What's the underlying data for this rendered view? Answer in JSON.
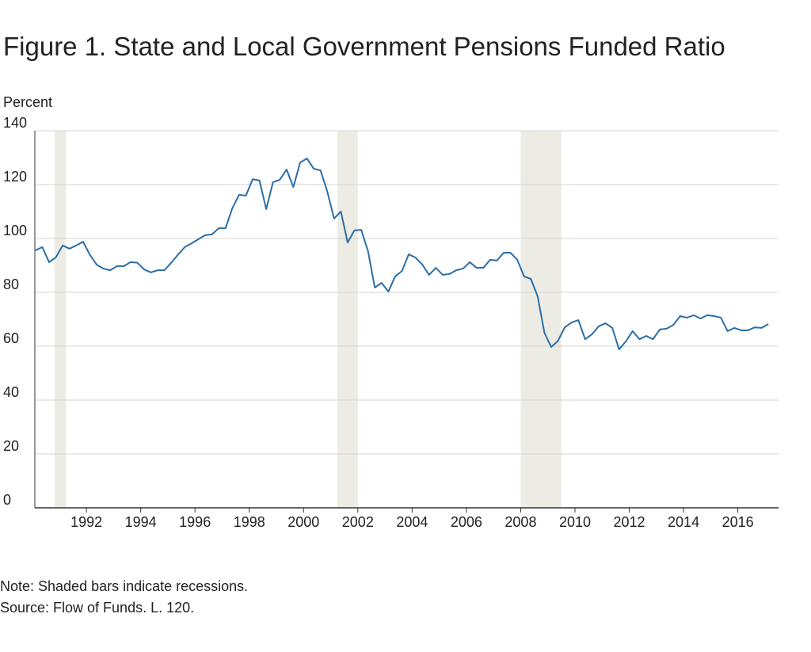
{
  "chart_data": {
    "type": "line",
    "title": "Figure 1. State and Local Government Pensions Funded Ratio",
    "y_label": "Percent",
    "notes": [
      "Note: Shaded bars indicate recessions.",
      "Source: Flow of Funds. L. 120."
    ],
    "xlim": [
      1990.1,
      2017.5
    ],
    "xticks": [
      1992,
      1994,
      1996,
      1998,
      2000,
      2002,
      2004,
      2006,
      2008,
      2010,
      2012,
      2014,
      2016
    ],
    "ylim": [
      0,
      140
    ],
    "yticks": [
      0,
      20,
      40,
      60,
      80,
      100,
      120,
      140
    ],
    "grid": true,
    "recession_color": "#ecebe4",
    "recessions": [
      [
        1990.83,
        1991.25
      ],
      [
        2001.25,
        2002.0
      ],
      [
        2008.0,
        2009.5
      ]
    ],
    "x": [
      1990.125,
      1990.375,
      1990.625,
      1990.875,
      1991.125,
      1991.375,
      1991.625,
      1991.875,
      1992.125,
      1992.375,
      1992.625,
      1992.875,
      1993.125,
      1993.375,
      1993.625,
      1993.875,
      1994.125,
      1994.375,
      1994.625,
      1994.875,
      1995.125,
      1995.375,
      1995.625,
      1995.875,
      1996.125,
      1996.375,
      1996.625,
      1996.875,
      1997.125,
      1997.375,
      1997.625,
      1997.875,
      1998.125,
      1998.375,
      1998.625,
      1998.875,
      1999.125,
      1999.375,
      1999.625,
      1999.875,
      2000.125,
      2000.375,
      2000.625,
      2000.875,
      2001.125,
      2001.375,
      2001.625,
      2001.875,
      2002.125,
      2002.375,
      2002.625,
      2002.875,
      2003.125,
      2003.375,
      2003.625,
      2003.875,
      2004.125,
      2004.375,
      2004.625,
      2004.875,
      2005.125,
      2005.375,
      2005.625,
      2005.875,
      2006.125,
      2006.375,
      2006.625,
      2006.875,
      2007.125,
      2007.375,
      2007.625,
      2007.875,
      2008.125,
      2008.375,
      2008.625,
      2008.875,
      2009.125,
      2009.375,
      2009.625,
      2009.875,
      2010.125,
      2010.375,
      2010.625,
      2010.875,
      2011.125,
      2011.375,
      2011.625,
      2011.875,
      2012.125,
      2012.375,
      2012.625,
      2012.875,
      2013.125,
      2013.375,
      2013.625,
      2013.875,
      2014.125,
      2014.375,
      2014.625,
      2014.875,
      2015.125,
      2015.375,
      2015.625,
      2015.875,
      2016.125,
      2016.375,
      2016.625,
      2016.875,
      2017.125
    ],
    "series": [
      {
        "color": "#2c6ea6",
        "values": [
          95.6,
          96.8,
          91.2,
          93,
          97.4,
          96.2,
          97.4,
          98.8,
          94,
          90.3,
          88.8,
          88.2,
          89.7,
          89.7,
          91.2,
          91,
          88.5,
          87.4,
          88.2,
          88.2,
          91,
          94,
          96.8,
          98.2,
          99.7,
          101.2,
          101.5,
          103.8,
          103.8,
          111.2,
          116.2,
          115.9,
          122,
          121.5,
          110.9,
          120.9,
          121.8,
          125.6,
          119.1,
          128.2,
          129.7,
          125.9,
          125.3,
          117.4,
          107.4,
          110,
          98.5,
          103,
          103.2,
          95.3,
          81.8,
          83.5,
          80.3,
          85.9,
          87.9,
          94.1,
          92.9,
          90.3,
          86.5,
          89.1,
          86.5,
          86.8,
          88.2,
          88.8,
          91.2,
          89.1,
          89.1,
          92.1,
          91.8,
          94.7,
          94.7,
          92.1,
          85.9,
          85,
          78.5,
          65,
          59.7,
          62,
          67,
          68.8,
          69.7,
          62.6,
          64.4,
          67.4,
          68.5,
          66.8,
          58.8,
          61.8,
          65.6,
          62.6,
          63.8,
          62.6,
          66.2,
          66.5,
          67.9,
          71.2,
          70.6,
          71.5,
          70.3,
          71.5,
          71.2,
          70.6,
          65.6,
          66.8,
          65.9,
          65.9,
          67,
          66.8,
          68.2
        ]
      }
    ]
  }
}
